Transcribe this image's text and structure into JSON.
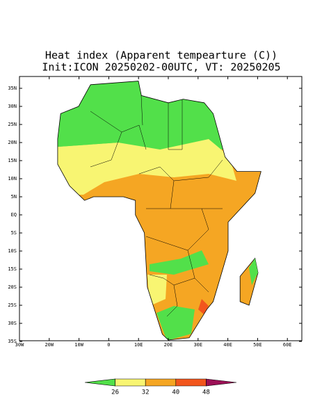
{
  "title": {
    "line1": "Heat index (Apparent tempearture (C))",
    "line2": "Init:ICON 20250202-00UTC, VT: 20250205"
  },
  "map": {
    "lat_labels": [
      "35N",
      "30N",
      "25N",
      "20N",
      "15N",
      "10N",
      "5N",
      "EQ",
      "5S",
      "10S",
      "15S",
      "20S",
      "25S",
      "30S",
      "35S"
    ],
    "lon_labels": [
      "30W",
      "20W",
      "10W",
      "0",
      "10E",
      "20E",
      "30E",
      "40E",
      "50E",
      "60E"
    ]
  },
  "colorbar": {
    "ticks": [
      26,
      32,
      40,
      48
    ],
    "colors": [
      "#52e04a",
      "#f8f572",
      "#f5a623",
      "#f2561d",
      "#9c1056"
    ]
  }
}
